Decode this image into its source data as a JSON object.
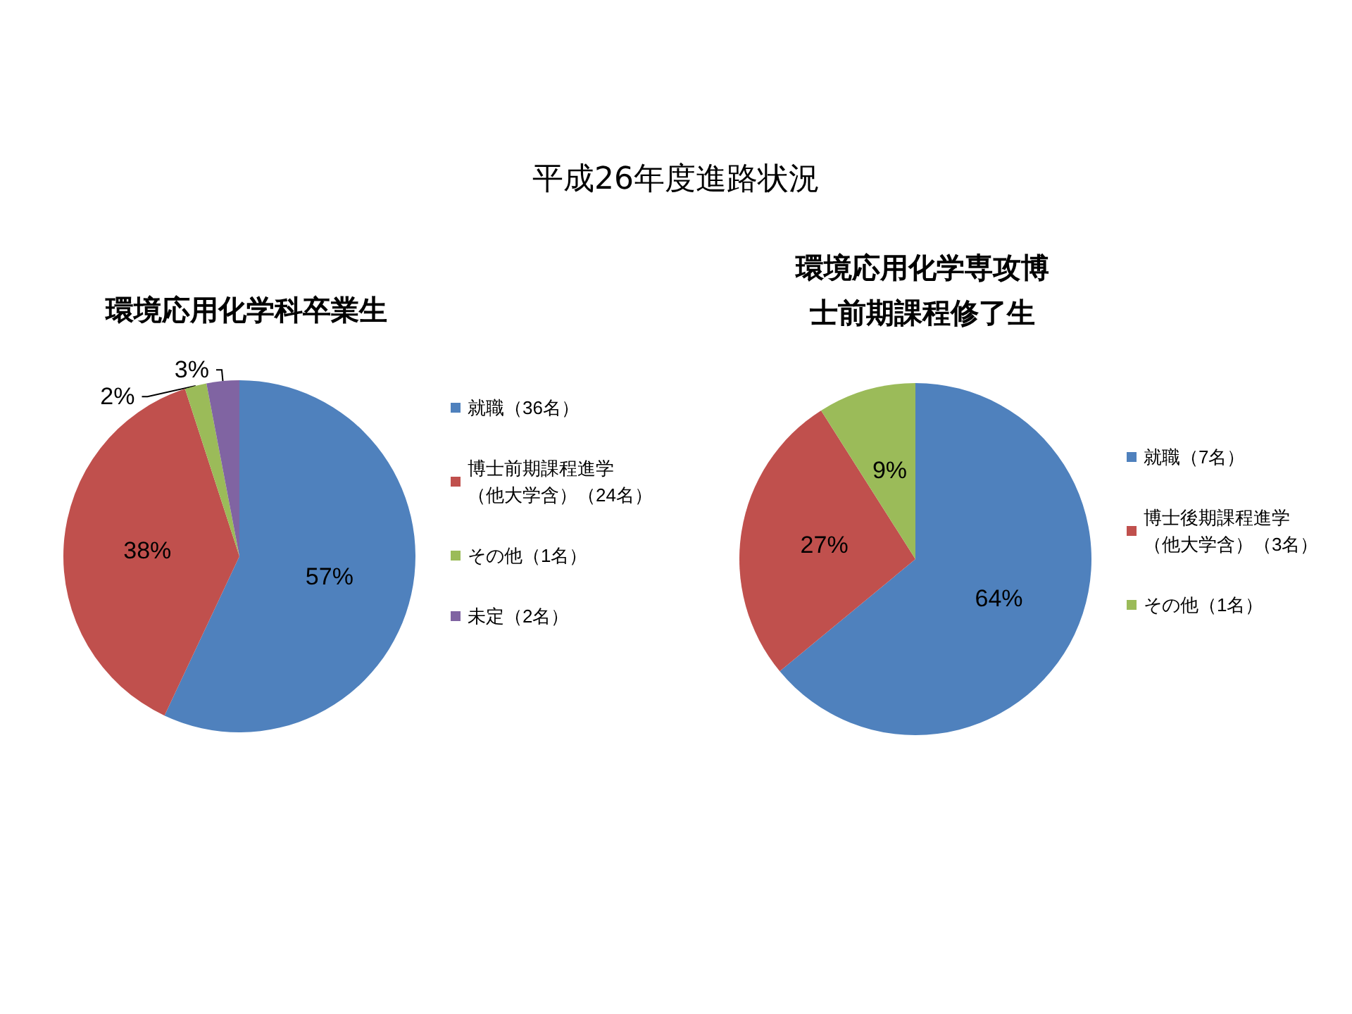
{
  "chart_data": [
    {
      "type": "pie",
      "title": "平成26年度進路状況",
      "subtitle": "環境応用化学科卒業生",
      "categories": [
        "就職（36名）",
        "博士前期課程進学（他大学含）（24名）",
        "その他（1名）",
        "未定（2名）"
      ],
      "values": [
        57,
        38,
        2,
        3
      ],
      "value_labels": [
        "57%",
        "38%",
        "2%",
        "3%"
      ],
      "colors": [
        "#4f81bd",
        "#c0504d",
        "#9bbb59",
        "#8064a2"
      ],
      "legend": "right"
    },
    {
      "type": "pie",
      "subtitle": "環境応用化学専攻博士前期課程修了生",
      "categories": [
        "就職（7名）",
        "博士後期課程進学（他大学含）（3名）",
        "その他（1名）"
      ],
      "values": [
        64,
        27,
        9
      ],
      "value_labels": [
        "64%",
        "27%",
        "9%"
      ],
      "colors": [
        "#4f81bd",
        "#c0504d",
        "#9bbb59"
      ],
      "legend": "right"
    }
  ]
}
